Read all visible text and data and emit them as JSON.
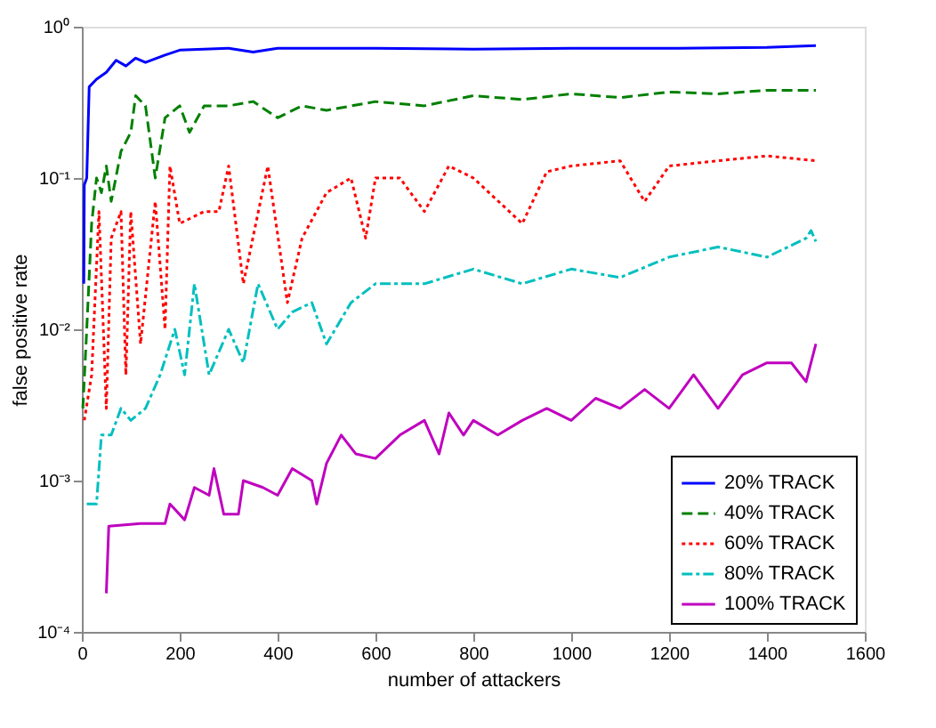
{
  "chart_data": {
    "type": "line",
    "xlabel": "number of attackers",
    "ylabel": "false positive rate",
    "log": "y",
    "xlim": [
      0,
      1600
    ],
    "ylim": [
      0.0001,
      1
    ],
    "xticks": [
      0,
      200,
      400,
      600,
      800,
      1000,
      1200,
      1400,
      1600
    ],
    "yticks": [
      {
        "value": 0.0001,
        "label": "10⁻⁴"
      },
      {
        "value": 0.001,
        "label": "10⁻³"
      },
      {
        "value": 0.01,
        "label": "10⁻²"
      },
      {
        "value": 0.1,
        "label": "10⁻¹"
      },
      {
        "value": 1,
        "label": "10⁰"
      }
    ],
    "legend": "bottom right",
    "grid": false,
    "series": [
      {
        "name": "20% TRACK",
        "color": "#0000ff",
        "line_style": "solid",
        "x": [
          4,
          5,
          10,
          15,
          30,
          50,
          70,
          90,
          110,
          130,
          170,
          200,
          300,
          350,
          400,
          600,
          800,
          1000,
          1200,
          1400,
          1500
        ],
        "values": [
          0.02,
          0.09,
          0.1,
          0.4,
          0.45,
          0.5,
          0.6,
          0.55,
          0.62,
          0.58,
          0.65,
          0.7,
          0.72,
          0.68,
          0.72,
          0.72,
          0.71,
          0.72,
          0.72,
          0.73,
          0.75
        ]
      },
      {
        "name": "40% TRACK",
        "color": "#008000",
        "line_style": "dashed",
        "x": [
          2,
          10,
          20,
          30,
          40,
          50,
          60,
          80,
          100,
          110,
          130,
          150,
          170,
          200,
          220,
          250,
          300,
          350,
          400,
          450,
          500,
          600,
          700,
          800,
          900,
          1000,
          1100,
          1200,
          1300,
          1400,
          1500
        ],
        "values": [
          0.003,
          0.01,
          0.05,
          0.1,
          0.08,
          0.12,
          0.07,
          0.15,
          0.2,
          0.35,
          0.3,
          0.1,
          0.25,
          0.3,
          0.2,
          0.3,
          0.3,
          0.32,
          0.25,
          0.3,
          0.28,
          0.32,
          0.3,
          0.35,
          0.33,
          0.36,
          0.34,
          0.37,
          0.36,
          0.38,
          0.38
        ]
      },
      {
        "name": "60% TRACK",
        "color": "#ff0000",
        "line_style": "dotted",
        "x": [
          5,
          20,
          35,
          50,
          60,
          80,
          90,
          100,
          120,
          150,
          170,
          180,
          200,
          250,
          280,
          300,
          330,
          380,
          420,
          450,
          500,
          550,
          580,
          600,
          650,
          700,
          750,
          800,
          900,
          950,
          1000,
          1100,
          1150,
          1200,
          1300,
          1400,
          1500
        ],
        "values": [
          0.0025,
          0.005,
          0.06,
          0.003,
          0.04,
          0.06,
          0.005,
          0.06,
          0.008,
          0.07,
          0.01,
          0.12,
          0.05,
          0.06,
          0.06,
          0.12,
          0.02,
          0.12,
          0.015,
          0.04,
          0.08,
          0.1,
          0.04,
          0.1,
          0.1,
          0.06,
          0.12,
          0.1,
          0.05,
          0.11,
          0.12,
          0.13,
          0.07,
          0.12,
          0.13,
          0.14,
          0.13
        ]
      },
      {
        "name": "80% TRACK",
        "color": "#00bfbf",
        "line_style": "dashdot",
        "x": [
          10,
          30,
          40,
          60,
          80,
          100,
          130,
          160,
          190,
          210,
          230,
          260,
          300,
          330,
          360,
          400,
          430,
          470,
          500,
          550,
          600,
          700,
          800,
          900,
          1000,
          1100,
          1200,
          1300,
          1400,
          1480,
          1490,
          1500
        ],
        "values": [
          0.0007,
          0.0007,
          0.002,
          0.002,
          0.003,
          0.0025,
          0.003,
          0.005,
          0.01,
          0.005,
          0.02,
          0.005,
          0.01,
          0.006,
          0.02,
          0.01,
          0.013,
          0.015,
          0.008,
          0.015,
          0.02,
          0.02,
          0.025,
          0.02,
          0.025,
          0.022,
          0.03,
          0.035,
          0.03,
          0.04,
          0.045,
          0.038
        ]
      },
      {
        "name": "100% TRACK",
        "color": "#bf00bf",
        "line_style": "solid",
        "x": [
          50,
          55,
          120,
          170,
          180,
          210,
          230,
          260,
          270,
          290,
          320,
          330,
          370,
          400,
          430,
          470,
          480,
          500,
          530,
          560,
          600,
          650,
          700,
          730,
          750,
          780,
          800,
          850,
          900,
          950,
          1000,
          1050,
          1100,
          1150,
          1200,
          1250,
          1300,
          1350,
          1400,
          1450,
          1480,
          1500
        ],
        "values": [
          0.00018,
          0.0005,
          0.00052,
          0.00052,
          0.0007,
          0.00055,
          0.0009,
          0.0008,
          0.0012,
          0.0006,
          0.0006,
          0.001,
          0.0009,
          0.0008,
          0.0012,
          0.001,
          0.0007,
          0.0013,
          0.002,
          0.0015,
          0.0014,
          0.002,
          0.0025,
          0.0015,
          0.0028,
          0.002,
          0.0025,
          0.002,
          0.0025,
          0.003,
          0.0025,
          0.0035,
          0.003,
          0.004,
          0.003,
          0.005,
          0.003,
          0.005,
          0.006,
          0.006,
          0.0045,
          0.008
        ]
      }
    ]
  }
}
